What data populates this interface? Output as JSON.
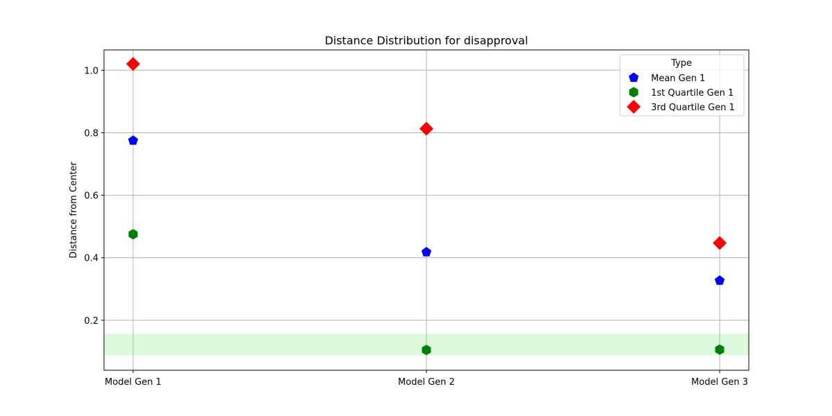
{
  "chart_data": {
    "type": "scatter",
    "title": "Distance Distribution for disapproval",
    "xlabel": "",
    "ylabel": "Distance from Center",
    "categories": [
      "Model Gen 1",
      "Model Gen 2",
      "Model Gen 3"
    ],
    "ylim": [
      0.04,
      1.065
    ],
    "yticks": [
      0.2,
      0.4,
      0.6,
      0.8,
      1.0
    ],
    "ytick_labels": [
      "0.2",
      "0.4",
      "0.6",
      "0.8",
      "1.0"
    ],
    "grid": true,
    "band": {
      "from": 0.087,
      "to": 0.157,
      "color": "#90ee90"
    },
    "legend": {
      "title": "Type",
      "placement": "top-right"
    },
    "series": [
      {
        "name": "Mean Gen 1",
        "marker": "pentagon",
        "color": "#0000ff",
        "values": [
          0.775,
          0.418,
          0.327
        ]
      },
      {
        "name": "1st Quartile Gen 1",
        "marker": "hexagon",
        "color": "#008000",
        "values": [
          0.475,
          0.105,
          0.106
        ]
      },
      {
        "name": "3rd Quartile Gen 1",
        "marker": "diamond",
        "color": "#ff0000",
        "values": [
          1.02,
          0.813,
          0.447
        ]
      }
    ]
  }
}
